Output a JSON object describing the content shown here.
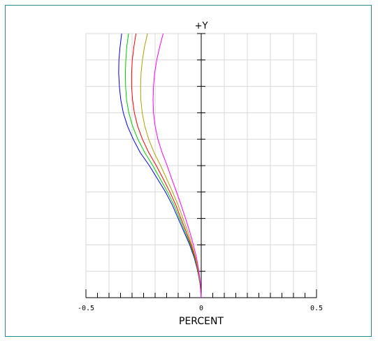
{
  "chart_data": {
    "type": "line",
    "title": "",
    "xlabel": "PERCENT",
    "ylabel": "+Y",
    "xlim": [
      -0.5,
      0.5
    ],
    "ylim": [
      0,
      1
    ],
    "x_tick_labels": [
      {
        "value": -0.5,
        "label": "-0.5"
      },
      {
        "value": 0,
        "label": "0"
      },
      {
        "value": 0.5,
        "label": "0.5"
      }
    ],
    "grid": true,
    "series": [
      {
        "color": "#0000ff",
        "points": [
          [
            0,
            0
          ],
          [
            -0.005,
            0.05
          ],
          [
            -0.015,
            0.1
          ],
          [
            -0.03,
            0.15
          ],
          [
            -0.05,
            0.2
          ],
          [
            -0.075,
            0.25
          ],
          [
            -0.1,
            0.3
          ],
          [
            -0.125,
            0.35
          ],
          [
            -0.155,
            0.4
          ],
          [
            -0.19,
            0.45
          ],
          [
            -0.225,
            0.5
          ],
          [
            -0.265,
            0.55
          ],
          [
            -0.295,
            0.6
          ],
          [
            -0.32,
            0.65
          ],
          [
            -0.338,
            0.7
          ],
          [
            -0.349,
            0.75
          ],
          [
            -0.355,
            0.8
          ],
          [
            -0.358,
            0.85
          ],
          [
            -0.357,
            0.9
          ],
          [
            -0.352,
            0.95
          ],
          [
            -0.345,
            1.0
          ]
        ]
      },
      {
        "color": "#00cc00",
        "points": [
          [
            0,
            0
          ],
          [
            -0.005,
            0.05
          ],
          [
            -0.014,
            0.1
          ],
          [
            -0.028,
            0.15
          ],
          [
            -0.047,
            0.2
          ],
          [
            -0.07,
            0.25
          ],
          [
            -0.094,
            0.3
          ],
          [
            -0.118,
            0.35
          ],
          [
            -0.146,
            0.4
          ],
          [
            -0.178,
            0.45
          ],
          [
            -0.21,
            0.5
          ],
          [
            -0.245,
            0.55
          ],
          [
            -0.275,
            0.6
          ],
          [
            -0.298,
            0.65
          ],
          [
            -0.314,
            0.7
          ],
          [
            -0.324,
            0.75
          ],
          [
            -0.328,
            0.8
          ],
          [
            -0.329,
            0.85
          ],
          [
            -0.327,
            0.9
          ],
          [
            -0.323,
            0.95
          ],
          [
            -0.315,
            1.0
          ]
        ]
      },
      {
        "color": "#ff0000",
        "points": [
          [
            0,
            0
          ],
          [
            -0.004,
            0.05
          ],
          [
            -0.013,
            0.1
          ],
          [
            -0.026,
            0.15
          ],
          [
            -0.044,
            0.2
          ],
          [
            -0.065,
            0.25
          ],
          [
            -0.088,
            0.3
          ],
          [
            -0.11,
            0.35
          ],
          [
            -0.136,
            0.4
          ],
          [
            -0.165,
            0.45
          ],
          [
            -0.195,
            0.5
          ],
          [
            -0.228,
            0.55
          ],
          [
            -0.255,
            0.6
          ],
          [
            -0.276,
            0.65
          ],
          [
            -0.29,
            0.7
          ],
          [
            -0.298,
            0.75
          ],
          [
            -0.302,
            0.8
          ],
          [
            -0.302,
            0.85
          ],
          [
            -0.299,
            0.9
          ],
          [
            -0.292,
            0.95
          ],
          [
            -0.283,
            1.0
          ]
        ]
      },
      {
        "color": "#b0a000",
        "points": [
          [
            0,
            0
          ],
          [
            -0.004,
            0.05
          ],
          [
            -0.012,
            0.1
          ],
          [
            -0.024,
            0.15
          ],
          [
            -0.04,
            0.2
          ],
          [
            -0.058,
            0.25
          ],
          [
            -0.079,
            0.3
          ],
          [
            -0.1,
            0.35
          ],
          [
            -0.124,
            0.4
          ],
          [
            -0.15,
            0.45
          ],
          [
            -0.176,
            0.5
          ],
          [
            -0.205,
            0.55
          ],
          [
            -0.228,
            0.6
          ],
          [
            -0.245,
            0.65
          ],
          [
            -0.256,
            0.7
          ],
          [
            -0.262,
            0.75
          ],
          [
            -0.263,
            0.8
          ],
          [
            -0.261,
            0.85
          ],
          [
            -0.255,
            0.9
          ],
          [
            -0.246,
            0.95
          ],
          [
            -0.233,
            1.0
          ]
        ]
      },
      {
        "color": "#ff00ff",
        "points": [
          [
            0,
            0
          ],
          [
            -0.003,
            0.05
          ],
          [
            -0.01,
            0.1
          ],
          [
            -0.02,
            0.15
          ],
          [
            -0.034,
            0.2
          ],
          [
            -0.05,
            0.25
          ],
          [
            -0.068,
            0.3
          ],
          [
            -0.087,
            0.35
          ],
          [
            -0.107,
            0.4
          ],
          [
            -0.128,
            0.45
          ],
          [
            -0.148,
            0.5
          ],
          [
            -0.17,
            0.55
          ],
          [
            -0.188,
            0.6
          ],
          [
            -0.2,
            0.65
          ],
          [
            -0.207,
            0.7
          ],
          [
            -0.209,
            0.75
          ],
          [
            -0.207,
            0.8
          ],
          [
            -0.202,
            0.85
          ],
          [
            -0.193,
            0.9
          ],
          [
            -0.18,
            0.95
          ],
          [
            -0.165,
            1.0
          ]
        ]
      }
    ]
  },
  "colors": {
    "frame": "#2b8a8a",
    "grid": "#d8d8d8",
    "axis": "#000000"
  }
}
